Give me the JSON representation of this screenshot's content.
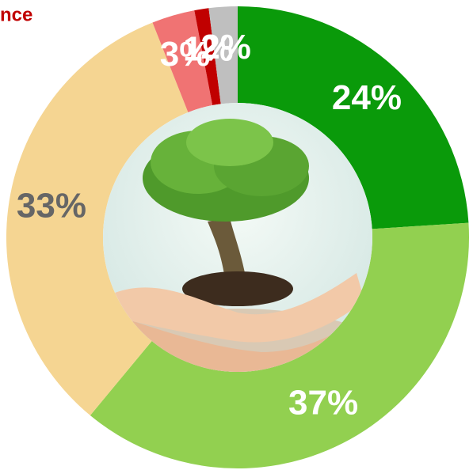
{
  "chart_data": {
    "type": "donut",
    "title": "nce",
    "values": [
      24,
      37,
      33,
      3,
      1,
      2
    ],
    "value_labels": [
      "24%",
      "37%",
      "33%",
      "3%",
      "1%",
      "2%"
    ],
    "colors": [
      "#0a9a0a",
      "#92d050",
      "#f5d592",
      "#f07373",
      "#c00000",
      "#bfbfbf"
    ],
    "label_colors": [
      "#ffffff",
      "#ffffff",
      "#666666",
      "#ffffff",
      "#ffffff",
      "#ffffff"
    ]
  }
}
